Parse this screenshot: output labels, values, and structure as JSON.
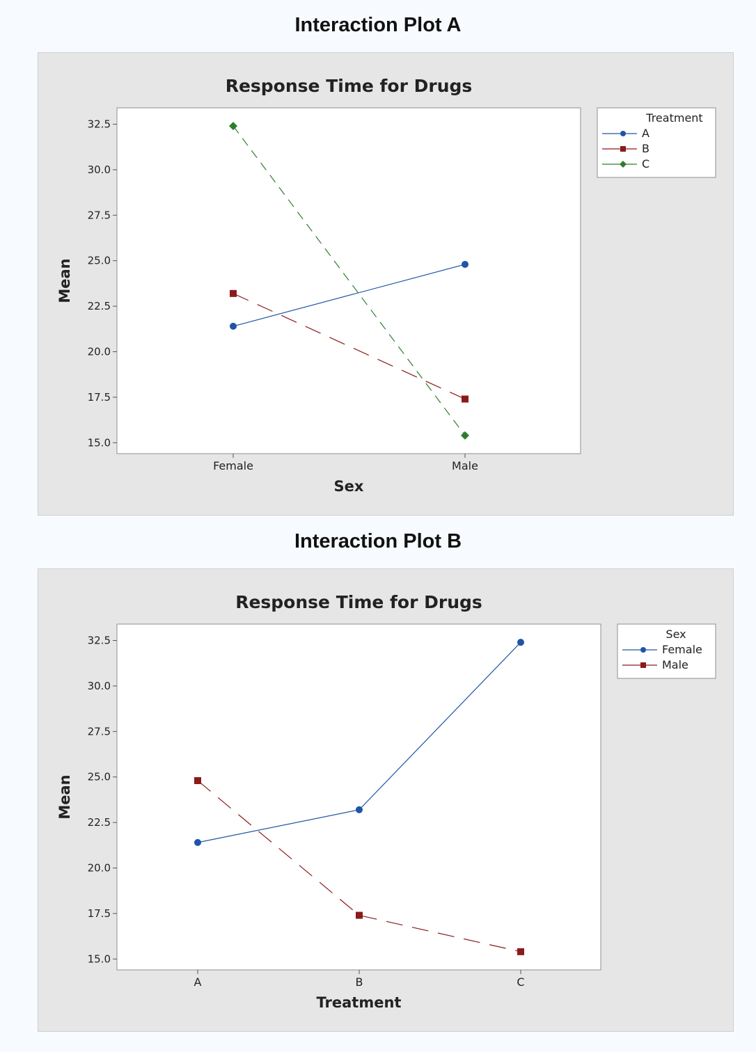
{
  "page": {
    "heading_a": "Interaction Plot A",
    "heading_b": "Interaction Plot B"
  },
  "chart_data": [
    {
      "type": "line",
      "title": "Response Time for Drugs",
      "xlabel": "Sex",
      "ylabel": "Mean",
      "categories": [
        "Female",
        "Male"
      ],
      "yticks": [
        "15.0",
        "17.5",
        "20.0",
        "22.5",
        "25.0",
        "27.5",
        "30.0",
        "32.5"
      ],
      "ylim": [
        14.4,
        33.4
      ],
      "legend_title": "Treatment",
      "legend_position": "right",
      "series": [
        {
          "name": "A",
          "values": [
            21.4,
            24.8
          ],
          "color": "#1f55a6",
          "marker": "circle",
          "dash": "solid"
        },
        {
          "name": "B",
          "values": [
            23.2,
            17.4
          ],
          "color": "#8b1a1a",
          "marker": "square",
          "dash": "long-dash"
        },
        {
          "name": "C",
          "values": [
            32.4,
            15.4
          ],
          "color": "#2e7d2e",
          "marker": "diamond",
          "dash": "dash"
        }
      ]
    },
    {
      "type": "line",
      "title": "Response Time for Drugs",
      "xlabel": "Treatment",
      "ylabel": "Mean",
      "categories": [
        "A",
        "B",
        "C"
      ],
      "yticks": [
        "15.0",
        "17.5",
        "20.0",
        "22.5",
        "25.0",
        "27.5",
        "30.0",
        "32.5"
      ],
      "ylim": [
        14.4,
        33.4
      ],
      "legend_title": "Sex",
      "legend_position": "right",
      "series": [
        {
          "name": "Female",
          "values": [
            21.4,
            23.2,
            32.4
          ],
          "color": "#1f55a6",
          "marker": "circle",
          "dash": "solid"
        },
        {
          "name": "Male",
          "values": [
            24.8,
            17.4,
            15.4
          ],
          "color": "#8b1a1a",
          "marker": "square",
          "dash": "long-dash"
        }
      ]
    }
  ]
}
